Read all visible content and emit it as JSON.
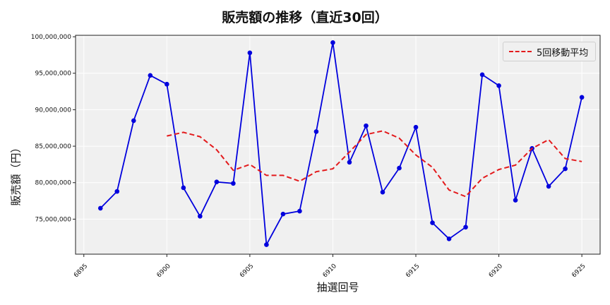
{
  "title": "販売額の推移（直近30回）",
  "legend": {
    "ma_label": "5回移動平均"
  },
  "axes": {
    "xlabel": "抽選回号",
    "ylabel": "販売額（円）",
    "xticks": [
      "6895",
      "6900",
      "6905",
      "6910",
      "6915",
      "6920",
      "6925"
    ],
    "yticks": [
      "75,000,000",
      "80,000,000",
      "85,000,000",
      "90,000,000",
      "95,000,000",
      "100,000,000"
    ]
  },
  "colors": {
    "sales": "#0000dd",
    "ma": "#e31a1c",
    "plot_bg": "#f0f0f0",
    "grid": "#ffffff"
  },
  "chart_data": {
    "type": "line",
    "title": "販売額の推移（直近30回）",
    "xlabel": "抽選回号",
    "ylabel": "販売額（円）",
    "x": [
      6896,
      6897,
      6898,
      6899,
      6900,
      6901,
      6902,
      6903,
      6904,
      6905,
      6906,
      6907,
      6908,
      6909,
      6910,
      6911,
      6912,
      6913,
      6914,
      6915,
      6916,
      6917,
      6918,
      6919,
      6920,
      6921,
      6922,
      6923,
      6924,
      6925
    ],
    "series": [
      {
        "name": "販売額",
        "style": "solid-marker",
        "color": "#0000dd",
        "values": [
          76500000,
          78800000,
          88500000,
          94700000,
          93500000,
          79300000,
          75400000,
          80100000,
          79900000,
          97800000,
          71500000,
          75700000,
          76100000,
          87000000,
          99200000,
          82800000,
          87800000,
          78700000,
          82000000,
          87600000,
          74500000,
          72300000,
          73900000,
          94800000,
          93300000,
          77600000,
          84700000,
          79500000,
          81900000,
          91700000
        ]
      },
      {
        "name": "5回移動平均",
        "style": "dashed",
        "color": "#e31a1c",
        "values": [
          null,
          null,
          null,
          null,
          86400000,
          86900000,
          86300000,
          84500000,
          81700000,
          82500000,
          81000000,
          81000000,
          80200000,
          81500000,
          81900000,
          84200000,
          86600000,
          87100000,
          86100000,
          83800000,
          82100000,
          79000000,
          78100000,
          80600000,
          81800000,
          82400000,
          84700000,
          85900000,
          83300000,
          82900000
        ]
      }
    ],
    "xlim": [
      6894.5,
      6926.1
    ],
    "ylim": [
      70200000,
      100200000
    ],
    "grid": true,
    "legend_position": "upper right"
  }
}
